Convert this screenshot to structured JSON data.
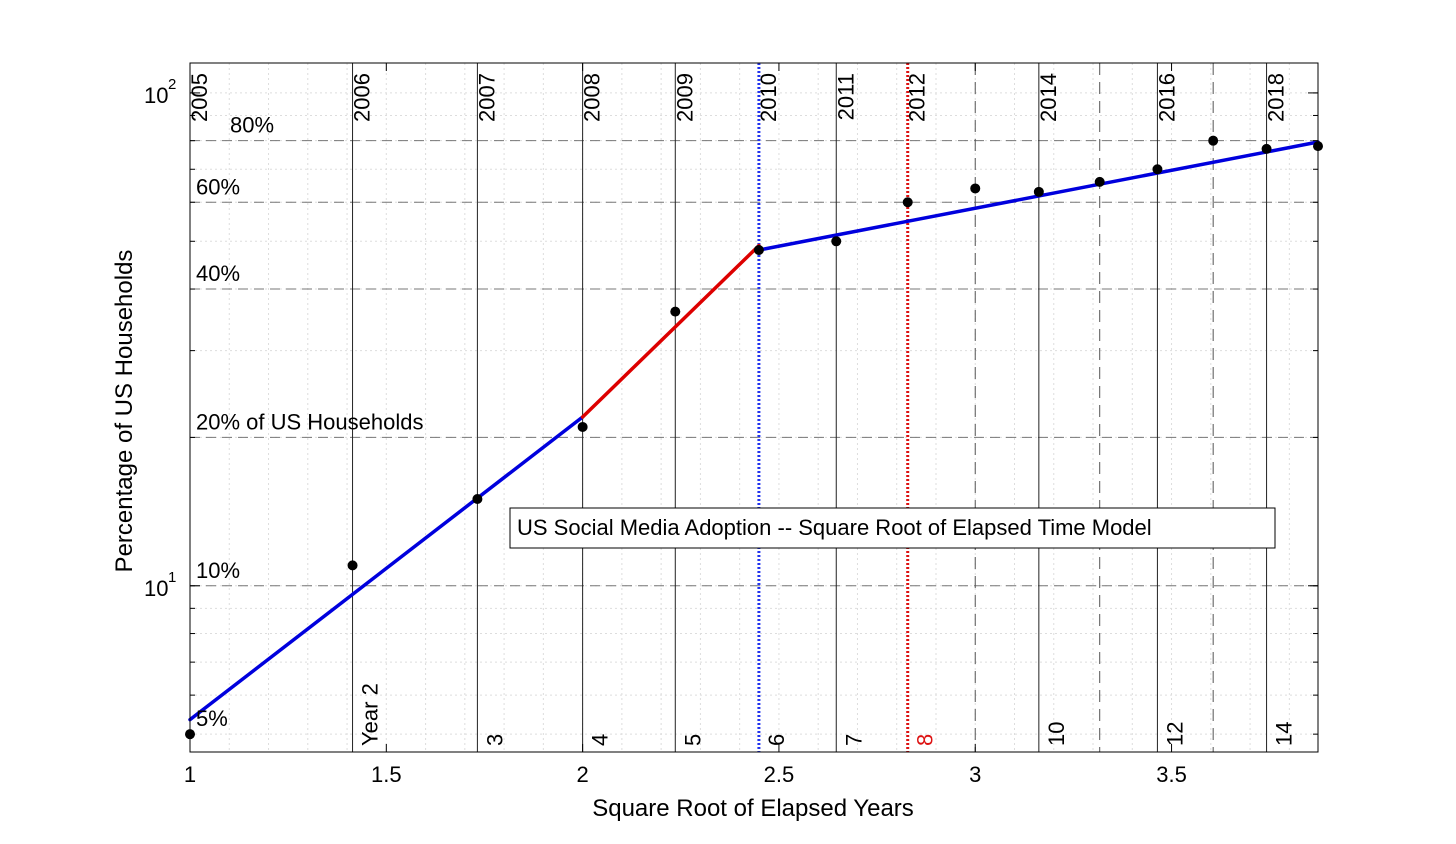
{
  "chart_data": {
    "type": "scatter",
    "title": "US Social Media Adoption -- Square Root of Elapsed Time Model",
    "xlabel": "Square Root of Elapsed Years",
    "ylabel": "Percentage of US Households",
    "xlim": [
      1,
      3.873
    ],
    "ylim": [
      4.6,
      115
    ],
    "y_scale": "log",
    "grid": true,
    "x_ticks": [
      {
        "value": 1,
        "label": "1"
      },
      {
        "value": 1.5,
        "label": "1.5"
      },
      {
        "value": 2,
        "label": "2"
      },
      {
        "value": 2.5,
        "label": "2.5"
      },
      {
        "value": 3,
        "label": "3"
      },
      {
        "value": 3.5,
        "label": "3.5"
      }
    ],
    "y_ticks": [
      {
        "value": 10,
        "base": "10",
        "exp": "1"
      },
      {
        "value": 100,
        "base": "10",
        "exp": "2"
      }
    ],
    "points": [
      {
        "x": 1.0,
        "y": 5.0
      },
      {
        "x": 1.414,
        "y": 11.0
      },
      {
        "x": 1.732,
        "y": 15.0
      },
      {
        "x": 2.0,
        "y": 21.0
      },
      {
        "x": 2.236,
        "y": 36.0
      },
      {
        "x": 2.449,
        "y": 48.0
      },
      {
        "x": 2.646,
        "y": 50.0
      },
      {
        "x": 2.828,
        "y": 60.0
      },
      {
        "x": 3.0,
        "y": 64.0
      },
      {
        "x": 3.162,
        "y": 63.0
      },
      {
        "x": 3.317,
        "y": 66.0
      },
      {
        "x": 3.464,
        "y": 70.0
      },
      {
        "x": 3.606,
        "y": 80.0
      },
      {
        "x": 3.742,
        "y": 77.0
      },
      {
        "x": 3.873,
        "y": 78.0
      }
    ],
    "fit_segments": [
      {
        "color": "#0000dd",
        "x": [
          1.0,
          2.0
        ],
        "y": [
          5.35,
          22.0
        ]
      },
      {
        "color": "#dd0000",
        "x": [
          2.0,
          2.449
        ],
        "y": [
          22.0,
          49.0
        ]
      },
      {
        "color": "#0000dd",
        "x": [
          2.449,
          3.873
        ],
        "y": [
          48.0,
          79.5
        ]
      }
    ],
    "year_markers": [
      {
        "x": 1.0,
        "year": "2005",
        "elapsed": "",
        "style": "solid"
      },
      {
        "x": 1.414,
        "year": "2006",
        "elapsed": "Year 2",
        "style": "solid"
      },
      {
        "x": 1.732,
        "year": "2007",
        "elapsed": "3",
        "style": "solid"
      },
      {
        "x": 2.0,
        "year": "2008",
        "elapsed": "4",
        "style": "solid"
      },
      {
        "x": 2.236,
        "year": "2009",
        "elapsed": "5",
        "style": "solid"
      },
      {
        "x": 2.449,
        "year": "2010",
        "elapsed": "6",
        "style": "blue-dotted"
      },
      {
        "x": 2.646,
        "year": "2011",
        "elapsed": "7",
        "style": "solid"
      },
      {
        "x": 2.828,
        "year": "2012",
        "elapsed": "8",
        "style": "red-dotted"
      },
      {
        "x": 3.0,
        "year": "",
        "elapsed": "",
        "style": "dashed"
      },
      {
        "x": 3.162,
        "year": "2014",
        "elapsed": "10",
        "style": "solid"
      },
      {
        "x": 3.317,
        "year": "",
        "elapsed": "",
        "style": "dashed"
      },
      {
        "x": 3.464,
        "year": "2016",
        "elapsed": "12",
        "style": "solid"
      },
      {
        "x": 3.606,
        "year": "",
        "elapsed": "",
        "style": "dashed"
      },
      {
        "x": 3.742,
        "year": "2018",
        "elapsed": "14",
        "style": "solid"
      }
    ],
    "percent_lines": [
      {
        "y": 80,
        "label": "80%"
      },
      {
        "y": 60,
        "label": "60%"
      },
      {
        "y": 40,
        "label": "40%"
      },
      {
        "y": 20,
        "label": "20% of US Households"
      },
      {
        "y": 10,
        "label": "10%"
      },
      {
        "y": 5,
        "label": "5%"
      }
    ],
    "colors": {
      "fit_blue": "#0000dd",
      "fit_red": "#dd0000",
      "marker_blue": "#2233ee",
      "marker_red": "#dd1111",
      "points": "#000000"
    }
  }
}
